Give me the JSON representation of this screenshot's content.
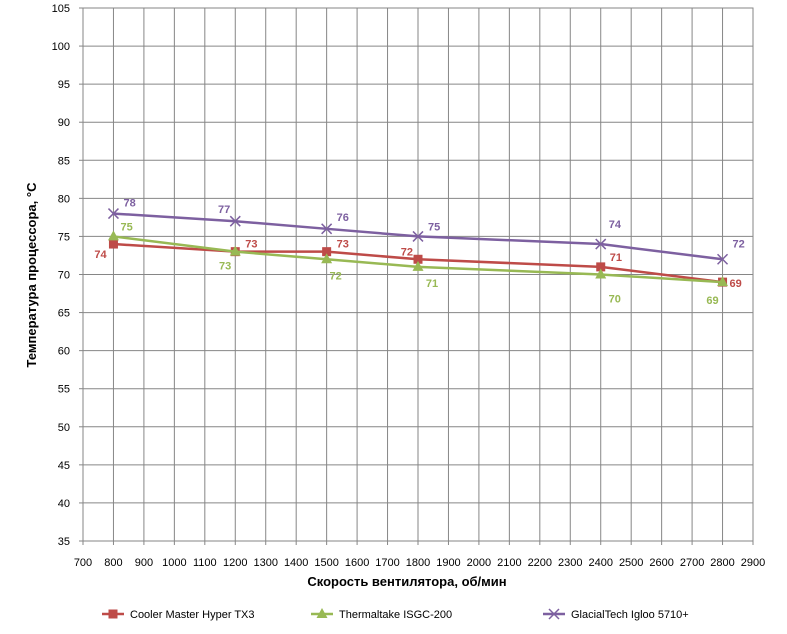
{
  "chart_data": {
    "type": "line",
    "title": "",
    "xlabel": "Скорость вентилятора, об/мин",
    "ylabel": "Температура процессора, °С",
    "xlim": [
      700,
      2900
    ],
    "ylim": [
      35,
      105
    ],
    "x_ticks": [
      "700",
      "800",
      "900",
      "1000",
      "1100",
      "1200",
      "1300",
      "1400",
      "1500",
      "1600",
      "1700",
      "1800",
      "1900",
      "2000",
      "2100",
      "2200",
      "2300",
      "2400",
      "2500",
      "2600",
      "2700",
      "2800",
      "2900"
    ],
    "y_ticks": [
      "35",
      "40",
      "45",
      "50",
      "55",
      "60",
      "65",
      "70",
      "75",
      "80",
      "85",
      "90",
      "95",
      "100",
      "105"
    ],
    "grid": true,
    "legend_position": "bottom",
    "x": [
      800,
      1200,
      1500,
      1800,
      2400,
      2800
    ],
    "series": [
      {
        "name": "Cooler Master Hyper TX3",
        "values": [
          74,
          73,
          73,
          72,
          71,
          69
        ],
        "labels": [
          "74",
          "73",
          "73",
          "72",
          "71",
          "69"
        ],
        "color": "#be4b48",
        "marker": "square"
      },
      {
        "name": "Thermaltake ISGC-200",
        "values": [
          75,
          73,
          72,
          71,
          70,
          69
        ],
        "labels": [
          "75",
          "73",
          "72",
          "71",
          "70",
          "69"
        ],
        "color": "#98b954",
        "marker": "triangle"
      },
      {
        "name": "GlacialTech Igloo 5710+",
        "values": [
          78,
          77,
          76,
          75,
          74,
          72
        ],
        "labels": [
          "78",
          "77",
          "76",
          "75",
          "74",
          "72"
        ],
        "color": "#7d60a0",
        "marker": "x"
      }
    ]
  }
}
